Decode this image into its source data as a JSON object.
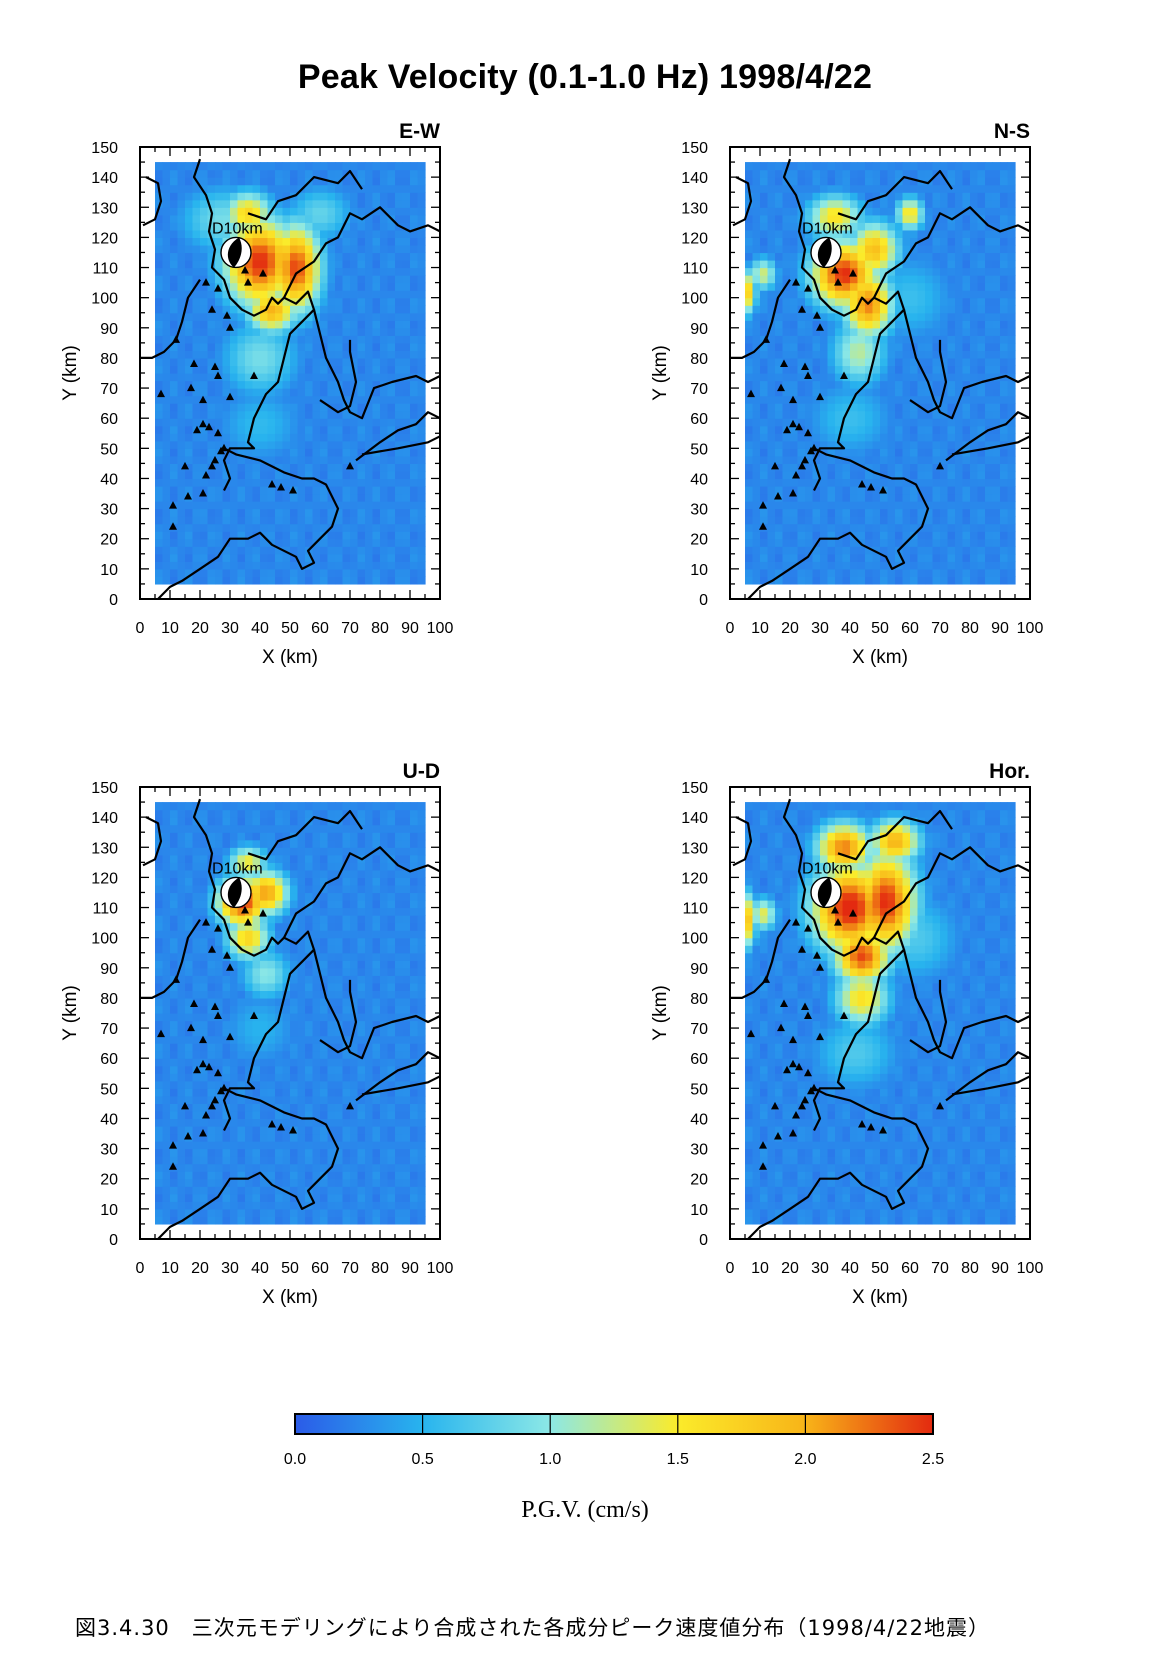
{
  "figure": {
    "title": "Peak Velocity (0.1-1.0 Hz) 1998/4/22",
    "caption": "図3.4.30　三次元モデリングにより合成された各成分ピーク速度値分布（1998/4/22地震）",
    "colormap_colors": [
      "#2b5be8",
      "#28b4ee",
      "#8ce8e6",
      "#fbeb2a",
      "#f8b418",
      "#e32a10"
    ]
  },
  "chart_data": [
    {
      "type": "heatmap",
      "panel_label": "E-W",
      "xlabel": "X (km)",
      "ylabel": "Y (km)",
      "xlim": [
        0,
        100
      ],
      "ylim": [
        0,
        150
      ],
      "xticks": [
        0,
        10,
        20,
        30,
        40,
        50,
        60,
        70,
        80,
        90,
        100
      ],
      "yticks": [
        0,
        10,
        20,
        30,
        40,
        50,
        60,
        70,
        80,
        90,
        100,
        110,
        120,
        130,
        140,
        150
      ],
      "data_extent": {
        "x": [
          5,
          95
        ],
        "y": [
          5,
          145
        ]
      },
      "annotation": "D10km",
      "source_xy": [
        32,
        115
      ],
      "background_pgv": 0.25,
      "pgv_blobs": [
        {
          "x": 40,
          "y": 112,
          "rx": 13,
          "ry": 16,
          "peak": 2.5
        },
        {
          "x": 52,
          "y": 110,
          "rx": 9,
          "ry": 16,
          "peak": 2.4
        },
        {
          "x": 44,
          "y": 96,
          "rx": 9,
          "ry": 8,
          "peak": 2.0
        },
        {
          "x": 36,
          "y": 128,
          "rx": 9,
          "ry": 8,
          "peak": 1.7
        },
        {
          "x": 40,
          "y": 80,
          "rx": 14,
          "ry": 14,
          "peak": 0.9
        },
        {
          "x": 28,
          "y": 126,
          "rx": 16,
          "ry": 12,
          "peak": 0.9
        },
        {
          "x": 60,
          "y": 128,
          "rx": 12,
          "ry": 10,
          "peak": 0.8
        },
        {
          "x": 40,
          "y": 58,
          "rx": 16,
          "ry": 14,
          "peak": 0.55
        }
      ],
      "stations": [
        [
          22,
          105
        ],
        [
          26,
          103
        ],
        [
          24,
          96
        ],
        [
          29,
          94
        ],
        [
          30,
          90
        ],
        [
          12,
          86
        ],
        [
          18,
          78
        ],
        [
          17,
          70
        ],
        [
          25,
          77
        ],
        [
          26,
          74
        ],
        [
          7,
          68
        ],
        [
          21,
          66
        ],
        [
          30,
          67
        ],
        [
          21,
          58
        ],
        [
          19,
          56
        ],
        [
          23,
          57
        ],
        [
          26,
          55
        ],
        [
          28,
          50
        ],
        [
          25,
          46
        ],
        [
          27,
          49
        ],
        [
          15,
          44
        ],
        [
          24,
          44
        ],
        [
          22,
          41
        ],
        [
          11,
          31
        ],
        [
          16,
          34
        ],
        [
          21,
          35
        ],
        [
          44,
          38
        ],
        [
          47,
          37
        ],
        [
          51,
          36
        ],
        [
          11,
          24
        ],
        [
          70,
          44
        ],
        [
          38,
          74
        ],
        [
          33,
          112
        ],
        [
          35,
          109
        ],
        [
          41,
          108
        ],
        [
          36,
          105
        ]
      ]
    },
    {
      "type": "heatmap",
      "panel_label": "N-S",
      "xlabel": "X (km)",
      "ylabel": "Y (km)",
      "xlim": [
        0,
        100
      ],
      "ylim": [
        0,
        150
      ],
      "xticks": [
        0,
        10,
        20,
        30,
        40,
        50,
        60,
        70,
        80,
        90,
        100
      ],
      "yticks": [
        0,
        10,
        20,
        30,
        40,
        50,
        60,
        70,
        80,
        90,
        100,
        110,
        120,
        130,
        140,
        150
      ],
      "data_extent": {
        "x": [
          5,
          95
        ],
        "y": [
          5,
          145
        ]
      },
      "annotation": "D10km",
      "source_xy": [
        32,
        115
      ],
      "background_pgv": 0.25,
      "pgv_blobs": [
        {
          "x": 38,
          "y": 108,
          "rx": 12,
          "ry": 12,
          "peak": 2.5
        },
        {
          "x": 46,
          "y": 98,
          "rx": 9,
          "ry": 12,
          "peak": 2.2
        },
        {
          "x": 48,
          "y": 116,
          "rx": 9,
          "ry": 10,
          "peak": 1.9
        },
        {
          "x": 60,
          "y": 128,
          "rx": 5,
          "ry": 6,
          "peak": 1.6
        },
        {
          "x": 35,
          "y": 127,
          "rx": 10,
          "ry": 8,
          "peak": 1.6
        },
        {
          "x": 43,
          "y": 82,
          "rx": 10,
          "ry": 12,
          "peak": 1.2
        },
        {
          "x": 11,
          "y": 108,
          "rx": 5,
          "ry": 6,
          "peak": 1.3
        },
        {
          "x": 6,
          "y": 102,
          "rx": 3,
          "ry": 8,
          "peak": 1.7
        },
        {
          "x": 40,
          "y": 60,
          "rx": 16,
          "ry": 14,
          "peak": 0.6
        },
        {
          "x": 60,
          "y": 100,
          "rx": 16,
          "ry": 16,
          "peak": 0.6
        }
      ],
      "stations": [
        [
          22,
          105
        ],
        [
          26,
          103
        ],
        [
          24,
          96
        ],
        [
          29,
          94
        ],
        [
          30,
          90
        ],
        [
          12,
          86
        ],
        [
          18,
          78
        ],
        [
          17,
          70
        ],
        [
          25,
          77
        ],
        [
          26,
          74
        ],
        [
          7,
          68
        ],
        [
          21,
          66
        ],
        [
          30,
          67
        ],
        [
          21,
          58
        ],
        [
          19,
          56
        ],
        [
          23,
          57
        ],
        [
          26,
          55
        ],
        [
          28,
          50
        ],
        [
          25,
          46
        ],
        [
          27,
          49
        ],
        [
          15,
          44
        ],
        [
          24,
          44
        ],
        [
          22,
          41
        ],
        [
          11,
          31
        ],
        [
          16,
          34
        ],
        [
          21,
          35
        ],
        [
          44,
          38
        ],
        [
          47,
          37
        ],
        [
          51,
          36
        ],
        [
          11,
          24
        ],
        [
          70,
          44
        ],
        [
          38,
          74
        ],
        [
          33,
          112
        ],
        [
          35,
          109
        ],
        [
          41,
          108
        ],
        [
          36,
          105
        ]
      ]
    },
    {
      "type": "heatmap",
      "panel_label": "U-D",
      "xlabel": "X (km)",
      "ylabel": "Y (km)",
      "xlim": [
        0,
        100
      ],
      "ylim": [
        0,
        150
      ],
      "xticks": [
        0,
        10,
        20,
        30,
        40,
        50,
        60,
        70,
        80,
        90,
        100
      ],
      "yticks": [
        0,
        10,
        20,
        30,
        40,
        50,
        60,
        70,
        80,
        90,
        100,
        110,
        120,
        130,
        140,
        150
      ],
      "data_extent": {
        "x": [
          5,
          95
        ],
        "y": [
          5,
          145
        ]
      },
      "annotation": "D10km",
      "source_xy": [
        32,
        115
      ],
      "background_pgv": 0.25,
      "pgv_blobs": [
        {
          "x": 34,
          "y": 112,
          "rx": 9,
          "ry": 9,
          "peak": 2.5
        },
        {
          "x": 42,
          "y": 115,
          "rx": 8,
          "ry": 8,
          "peak": 2.1
        },
        {
          "x": 36,
          "y": 100,
          "rx": 8,
          "ry": 8,
          "peak": 1.7
        },
        {
          "x": 36,
          "y": 125,
          "rx": 7,
          "ry": 6,
          "peak": 1.5
        },
        {
          "x": 42,
          "y": 88,
          "rx": 9,
          "ry": 9,
          "peak": 1.0
        },
        {
          "x": 40,
          "y": 70,
          "rx": 14,
          "ry": 14,
          "peak": 0.5
        }
      ],
      "stations": [
        [
          22,
          105
        ],
        [
          26,
          103
        ],
        [
          24,
          96
        ],
        [
          29,
          94
        ],
        [
          30,
          90
        ],
        [
          12,
          86
        ],
        [
          18,
          78
        ],
        [
          17,
          70
        ],
        [
          25,
          77
        ],
        [
          26,
          74
        ],
        [
          7,
          68
        ],
        [
          21,
          66
        ],
        [
          30,
          67
        ],
        [
          21,
          58
        ],
        [
          19,
          56
        ],
        [
          23,
          57
        ],
        [
          26,
          55
        ],
        [
          28,
          50
        ],
        [
          25,
          46
        ],
        [
          27,
          49
        ],
        [
          15,
          44
        ],
        [
          24,
          44
        ],
        [
          22,
          41
        ],
        [
          11,
          31
        ],
        [
          16,
          34
        ],
        [
          21,
          35
        ],
        [
          44,
          38
        ],
        [
          47,
          37
        ],
        [
          51,
          36
        ],
        [
          11,
          24
        ],
        [
          70,
          44
        ],
        [
          38,
          74
        ],
        [
          33,
          112
        ],
        [
          35,
          109
        ],
        [
          41,
          108
        ],
        [
          36,
          105
        ]
      ]
    },
    {
      "type": "heatmap",
      "panel_label": "Hor.",
      "xlabel": "X (km)",
      "ylabel": "Y (km)",
      "xlim": [
        0,
        100
      ],
      "ylim": [
        0,
        150
      ],
      "xticks": [
        0,
        10,
        20,
        30,
        40,
        50,
        60,
        70,
        80,
        90,
        100
      ],
      "yticks": [
        0,
        10,
        20,
        30,
        40,
        50,
        60,
        70,
        80,
        90,
        100,
        110,
        120,
        130,
        140,
        150
      ],
      "data_extent": {
        "x": [
          5,
          95
        ],
        "y": [
          5,
          145
        ]
      },
      "annotation": "D10km",
      "source_xy": [
        32,
        115
      ],
      "background_pgv": 0.25,
      "pgv_blobs": [
        {
          "x": 40,
          "y": 110,
          "rx": 14,
          "ry": 16,
          "peak": 2.6
        },
        {
          "x": 52,
          "y": 112,
          "rx": 11,
          "ry": 18,
          "peak": 2.5
        },
        {
          "x": 44,
          "y": 94,
          "rx": 10,
          "ry": 10,
          "peak": 2.4
        },
        {
          "x": 38,
          "y": 130,
          "rx": 10,
          "ry": 9,
          "peak": 2.2
        },
        {
          "x": 55,
          "y": 132,
          "rx": 9,
          "ry": 8,
          "peak": 2.0
        },
        {
          "x": 44,
          "y": 80,
          "rx": 10,
          "ry": 10,
          "peak": 1.6
        },
        {
          "x": 11,
          "y": 108,
          "rx": 5,
          "ry": 6,
          "peak": 1.4
        },
        {
          "x": 6,
          "y": 106,
          "rx": 3,
          "ry": 10,
          "peak": 1.8
        },
        {
          "x": 42,
          "y": 62,
          "rx": 16,
          "ry": 14,
          "peak": 0.7
        },
        {
          "x": 62,
          "y": 100,
          "rx": 16,
          "ry": 16,
          "peak": 0.7
        }
      ],
      "stations": [
        [
          22,
          105
        ],
        [
          26,
          103
        ],
        [
          24,
          96
        ],
        [
          29,
          94
        ],
        [
          30,
          90
        ],
        [
          12,
          86
        ],
        [
          18,
          78
        ],
        [
          17,
          70
        ],
        [
          25,
          77
        ],
        [
          26,
          74
        ],
        [
          7,
          68
        ],
        [
          21,
          66
        ],
        [
          30,
          67
        ],
        [
          21,
          58
        ],
        [
          19,
          56
        ],
        [
          23,
          57
        ],
        [
          26,
          55
        ],
        [
          28,
          50
        ],
        [
          25,
          46
        ],
        [
          27,
          49
        ],
        [
          15,
          44
        ],
        [
          24,
          44
        ],
        [
          22,
          41
        ],
        [
          11,
          31
        ],
        [
          16,
          34
        ],
        [
          21,
          35
        ],
        [
          44,
          38
        ],
        [
          47,
          37
        ],
        [
          51,
          36
        ],
        [
          11,
          24
        ],
        [
          70,
          44
        ],
        [
          38,
          74
        ],
        [
          33,
          112
        ],
        [
          35,
          109
        ],
        [
          41,
          108
        ],
        [
          36,
          105
        ]
      ]
    },
    {
      "type": "colorbar",
      "label": "P.G.V. (cm/s)",
      "range": [
        0.0,
        2.5
      ],
      "ticks": [
        "0.0",
        "0.5",
        "1.0",
        "1.5",
        "2.0",
        "2.5"
      ]
    }
  ]
}
